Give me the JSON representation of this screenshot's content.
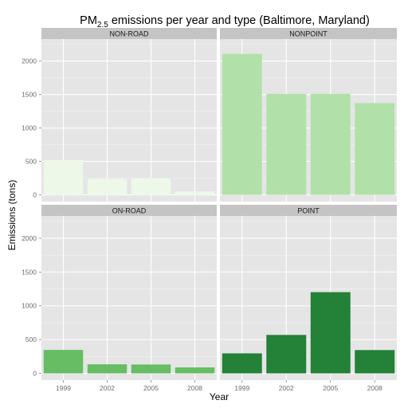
{
  "chart_data": {
    "type": "bar",
    "title": {
      "prefix": "PM",
      "subscript": "2.5",
      "suffix": " emissions per year and type (Baltimore, Maryland)"
    },
    "xlabel": "Year",
    "ylabel": "Emissions (tons)",
    "categories": [
      "1999",
      "2002",
      "2005",
      "2008"
    ],
    "yticks": [
      0,
      500,
      1000,
      1500,
      2000
    ],
    "ylim": [
      -100,
      2330
    ],
    "grid": true,
    "panels": [
      {
        "name": "NON-ROAD",
        "values": [
          522,
          240,
          248,
          55
        ],
        "color": "#edf8e9"
      },
      {
        "name": "NONPOINT",
        "values": [
          2108,
          1510,
          1510,
          1373
        ],
        "color": "#b2e0a9"
      },
      {
        "name": "ON-ROAD",
        "values": [
          347,
          134,
          131,
          88
        ],
        "color": "#66bd63"
      },
      {
        "name": "POINT",
        "values": [
          296,
          569,
          1202,
          345
        ],
        "color": "#238138"
      }
    ]
  },
  "colors": {
    "panel_background": "#e5e5e5",
    "strip_background": "#c4c4c4",
    "grid_major": "#ffffff",
    "grid_minor": "#f2f2f2",
    "axis_text": "#6b6b6b",
    "text": "#000000"
  }
}
